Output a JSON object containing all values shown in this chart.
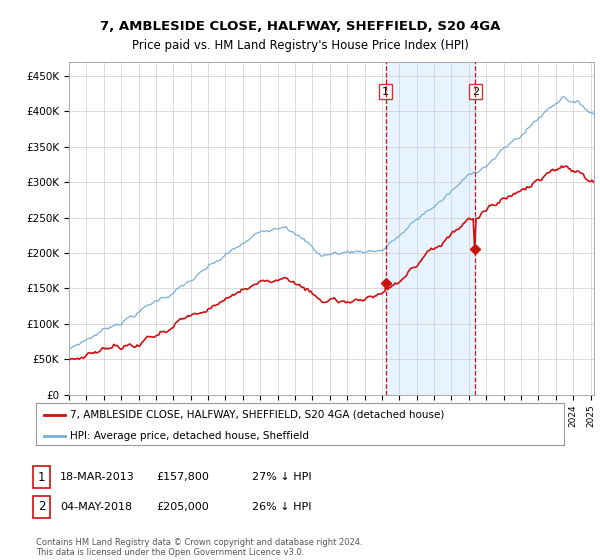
{
  "title": "7, AMBLESIDE CLOSE, HALFWAY, SHEFFIELD, S20 4GA",
  "subtitle": "Price paid vs. HM Land Registry's House Price Index (HPI)",
  "ylabel_ticks": [
    "£0",
    "£50K",
    "£100K",
    "£150K",
    "£200K",
    "£250K",
    "£300K",
    "£350K",
    "£400K",
    "£450K"
  ],
  "ytick_values": [
    0,
    50000,
    100000,
    150000,
    200000,
    250000,
    300000,
    350000,
    400000,
    450000
  ],
  "ylim": [
    0,
    470000
  ],
  "xlim_start": 1995.0,
  "xlim_end": 2025.2,
  "hpi_color": "#7bafd4",
  "price_color": "#cc1111",
  "marker1_date": 2013.21,
  "marker1_price": 157800,
  "marker2_date": 2018.37,
  "marker2_price": 205000,
  "legend_line1": "7, AMBLESIDE CLOSE, HALFWAY, SHEFFIELD, S20 4GA (detached house)",
  "legend_line2": "HPI: Average price, detached house, Sheffield",
  "footer": "Contains HM Land Registry data © Crown copyright and database right 2024.\nThis data is licensed under the Open Government Licence v3.0.",
  "background_color": "#ffffff"
}
